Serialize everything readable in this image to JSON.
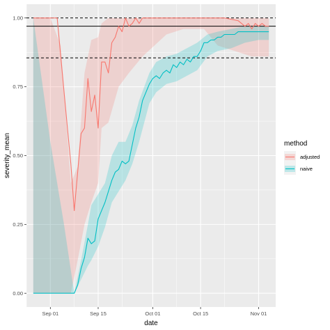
{
  "chart_data": {
    "type": "line",
    "xlabel": "date",
    "ylabel": "severity_mean",
    "xlim": [
      "2021-08-25",
      "2021-11-06"
    ],
    "ylim": [
      -0.05,
      1.05
    ],
    "x_ticks": [
      {
        "date": "2021-09-01",
        "label": "Sep 01"
      },
      {
        "date": "2021-09-15",
        "label": "Sep 15"
      },
      {
        "date": "2021-10-01",
        "label": "Oct 01"
      },
      {
        "date": "2021-10-15",
        "label": "Oct 15"
      },
      {
        "date": "2021-11-01",
        "label": "Nov 01"
      }
    ],
    "x_minor_ticks": [
      "2021-08-25",
      "2021-09-08",
      "2021-09-22",
      "2021-10-08",
      "2021-10-22"
    ],
    "y_ticks": [
      {
        "value": 0.0,
        "label": "0.00"
      },
      {
        "value": 0.25,
        "label": "0.25"
      },
      {
        "value": 0.5,
        "label": "0.50"
      },
      {
        "value": 0.75,
        "label": "0.75"
      },
      {
        "value": 1.0,
        "label": "1.00"
      }
    ],
    "y_minor_ticks": [
      0.125,
      0.375,
      0.625,
      0.875
    ],
    "grid": true,
    "legend": {
      "title": "method",
      "position": "right",
      "entries": [
        {
          "label": "adjusted",
          "color": "#F8766D"
        },
        {
          "label": "naive",
          "color": "#00BFC4"
        }
      ]
    },
    "hlines": [
      {
        "y": 1.0,
        "style": "dashed",
        "color": "#000000"
      },
      {
        "y": 0.97,
        "style": "solid",
        "color": "#000000"
      },
      {
        "y": 0.855,
        "style": "dashed",
        "color": "#000000"
      }
    ],
    "series": [
      {
        "name": "adjusted",
        "color": "#F8766D",
        "points": [
          [
            "2021-08-27",
            1.0
          ],
          [
            "2021-09-01",
            1.0
          ],
          [
            "2021-09-03",
            1.0
          ],
          [
            "2021-09-06",
            0.6
          ],
          [
            "2021-09-07",
            0.47
          ],
          [
            "2021-09-08",
            0.3
          ],
          [
            "2021-09-10",
            0.58
          ],
          [
            "2021-09-11",
            0.6
          ],
          [
            "2021-09-12",
            0.78
          ],
          [
            "2021-09-13",
            0.66
          ],
          [
            "2021-09-14",
            0.72
          ],
          [
            "2021-09-15",
            0.6
          ],
          [
            "2021-09-16",
            0.84
          ],
          [
            "2021-09-17",
            0.84
          ],
          [
            "2021-09-18",
            0.8
          ],
          [
            "2021-09-19",
            0.91
          ],
          [
            "2021-09-20",
            0.93
          ],
          [
            "2021-09-21",
            0.97
          ],
          [
            "2021-09-22",
            0.95
          ],
          [
            "2021-09-23",
            1.0
          ],
          [
            "2021-09-24",
            0.97
          ],
          [
            "2021-09-25",
            0.98
          ],
          [
            "2021-09-26",
            1.0
          ],
          [
            "2021-09-27",
            0.98
          ],
          [
            "2021-09-28",
            1.0
          ],
          [
            "2021-10-01",
            1.0
          ],
          [
            "2021-10-15",
            1.0
          ],
          [
            "2021-10-22",
            1.0
          ],
          [
            "2021-10-26",
            0.99
          ],
          [
            "2021-10-28",
            0.97
          ],
          [
            "2021-10-29",
            0.98
          ],
          [
            "2021-10-30",
            0.96
          ],
          [
            "2021-10-31",
            0.98
          ],
          [
            "2021-11-01",
            0.97
          ],
          [
            "2021-11-02",
            0.98
          ],
          [
            "2021-11-03",
            0.97
          ],
          [
            "2021-11-04",
            0.97
          ]
        ],
        "ribbon": [
          [
            "2021-08-27",
            0.0,
            1.0
          ],
          [
            "2021-09-01",
            0.0,
            1.0
          ],
          [
            "2021-09-04",
            0.0,
            0.9
          ],
          [
            "2021-09-07",
            0.0,
            0.4
          ],
          [
            "2021-09-09",
            0.12,
            0.46
          ],
          [
            "2021-09-11",
            0.25,
            0.8
          ],
          [
            "2021-09-13",
            0.33,
            0.92
          ],
          [
            "2021-09-15",
            0.4,
            0.93
          ],
          [
            "2021-09-16",
            0.6,
            0.98
          ],
          [
            "2021-09-18",
            0.62,
            1.0
          ],
          [
            "2021-09-21",
            0.75,
            1.0
          ],
          [
            "2021-09-24",
            0.8,
            1.0
          ],
          [
            "2021-09-28",
            0.86,
            1.0
          ],
          [
            "2021-10-05",
            0.94,
            1.0
          ],
          [
            "2021-10-10",
            0.96,
            1.0
          ],
          [
            "2021-10-16",
            0.96,
            1.0
          ],
          [
            "2021-10-20",
            0.9,
            1.0
          ],
          [
            "2021-10-25",
            0.88,
            1.0
          ],
          [
            "2021-10-30",
            0.86,
            1.0
          ],
          [
            "2021-11-04",
            0.86,
            1.0
          ]
        ]
      },
      {
        "name": "naive",
        "color": "#00BFC4",
        "points": [
          [
            "2021-08-27",
            0.0
          ],
          [
            "2021-09-01",
            0.0
          ],
          [
            "2021-09-05",
            0.0
          ],
          [
            "2021-09-08",
            0.0
          ],
          [
            "2021-09-09",
            0.03
          ],
          [
            "2021-09-10",
            0.09
          ],
          [
            "2021-09-11",
            0.13
          ],
          [
            "2021-09-12",
            0.2
          ],
          [
            "2021-09-13",
            0.18
          ],
          [
            "2021-09-14",
            0.19
          ],
          [
            "2021-09-15",
            0.27
          ],
          [
            "2021-09-16",
            0.3
          ],
          [
            "2021-09-17",
            0.33
          ],
          [
            "2021-09-18",
            0.37
          ],
          [
            "2021-09-19",
            0.41
          ],
          [
            "2021-09-20",
            0.44
          ],
          [
            "2021-09-21",
            0.45
          ],
          [
            "2021-09-22",
            0.48
          ],
          [
            "2021-09-23",
            0.47
          ],
          [
            "2021-09-24",
            0.48
          ],
          [
            "2021-09-25",
            0.54
          ],
          [
            "2021-09-26",
            0.6
          ],
          [
            "2021-09-27",
            0.64
          ],
          [
            "2021-09-28",
            0.7
          ],
          [
            "2021-09-29",
            0.73
          ],
          [
            "2021-09-30",
            0.76
          ],
          [
            "2021-10-01",
            0.78
          ],
          [
            "2021-10-02",
            0.79
          ],
          [
            "2021-10-03",
            0.78
          ],
          [
            "2021-10-04",
            0.8
          ],
          [
            "2021-10-05",
            0.81
          ],
          [
            "2021-10-06",
            0.8
          ],
          [
            "2021-10-07",
            0.83
          ],
          [
            "2021-10-08",
            0.82
          ],
          [
            "2021-10-09",
            0.84
          ],
          [
            "2021-10-10",
            0.83
          ],
          [
            "2021-10-11",
            0.85
          ],
          [
            "2021-10-12",
            0.84
          ],
          [
            "2021-10-13",
            0.86
          ],
          [
            "2021-10-14",
            0.86
          ],
          [
            "2021-10-15",
            0.88
          ],
          [
            "2021-10-16",
            0.91
          ],
          [
            "2021-10-17",
            0.91
          ],
          [
            "2021-10-18",
            0.92
          ],
          [
            "2021-10-19",
            0.92
          ],
          [
            "2021-10-20",
            0.93
          ],
          [
            "2021-10-21",
            0.93
          ],
          [
            "2021-10-22",
            0.94
          ],
          [
            "2021-10-24",
            0.94
          ],
          [
            "2021-10-25",
            0.94
          ],
          [
            "2021-10-26",
            0.95
          ],
          [
            "2021-10-28",
            0.95
          ],
          [
            "2021-10-30",
            0.95
          ],
          [
            "2021-11-01",
            0.95
          ],
          [
            "2021-11-04",
            0.95
          ]
        ],
        "ribbon": [
          [
            "2021-08-27",
            0.0,
            1.0
          ],
          [
            "2021-09-01",
            0.0,
            0.55
          ],
          [
            "2021-09-05",
            0.0,
            0.25
          ],
          [
            "2021-09-08",
            0.0,
            0.0
          ],
          [
            "2021-09-10",
            0.05,
            0.12
          ],
          [
            "2021-09-12",
            0.1,
            0.25
          ],
          [
            "2021-09-13",
            0.12,
            0.32
          ],
          [
            "2021-09-15",
            0.17,
            0.36
          ],
          [
            "2021-09-17",
            0.24,
            0.4
          ],
          [
            "2021-09-19",
            0.33,
            0.5
          ],
          [
            "2021-09-21",
            0.37,
            0.55
          ],
          [
            "2021-09-23",
            0.41,
            0.55
          ],
          [
            "2021-09-25",
            0.47,
            0.61
          ],
          [
            "2021-09-27",
            0.55,
            0.7
          ],
          [
            "2021-09-30",
            0.69,
            0.8
          ],
          [
            "2021-10-02",
            0.73,
            0.84
          ],
          [
            "2021-10-05",
            0.76,
            0.86
          ],
          [
            "2021-10-08",
            0.77,
            0.87
          ],
          [
            "2021-10-11",
            0.79,
            0.89
          ],
          [
            "2021-10-14",
            0.81,
            0.91
          ],
          [
            "2021-10-17",
            0.86,
            0.94
          ],
          [
            "2021-10-20",
            0.88,
            0.95
          ],
          [
            "2021-10-24",
            0.89,
            0.96
          ],
          [
            "2021-10-28",
            0.91,
            0.97
          ],
          [
            "2021-11-01",
            0.92,
            0.97
          ],
          [
            "2021-11-04",
            0.92,
            0.97
          ]
        ]
      }
    ]
  }
}
